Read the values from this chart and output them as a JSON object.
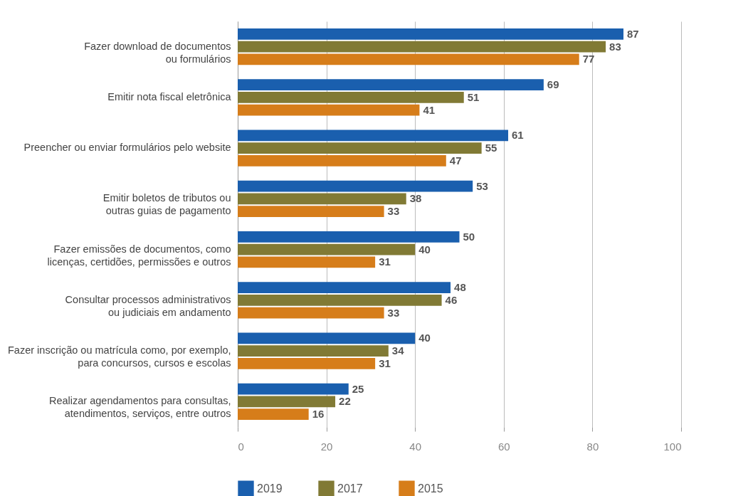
{
  "chart_data": {
    "type": "bar",
    "orientation": "horizontal",
    "categories": [
      "Fazer download de documentos\nou formulários",
      "Emitir nota fiscal eletrônica",
      "Preencher ou enviar formulários pelo website",
      "Emitir boletos de tributos ou\noutras guias de pagamento",
      "Fazer emissões de documentos, como\nlicenças, certidões, permissões e outros",
      "Consultar processos administrativos\nou judiciais em andamento",
      "Fazer inscrição ou matrícula como, por exemplo,\npara concursos, cursos e escolas",
      "Realizar agendamentos para consultas,\natendimentos, serviços, entre outros"
    ],
    "series": [
      {
        "name": "2019",
        "color": "#1a5fae",
        "values": [
          87,
          69,
          61,
          53,
          50,
          48,
          40,
          25
        ]
      },
      {
        "name": "2017",
        "color": "#817a35",
        "values": [
          83,
          51,
          55,
          38,
          40,
          46,
          34,
          22
        ]
      },
      {
        "name": "2015",
        "color": "#d67d1a",
        "values": [
          77,
          41,
          47,
          33,
          31,
          33,
          31,
          16
        ]
      }
    ],
    "xlim": [
      0,
      100
    ],
    "xticks": [
      0,
      20,
      40,
      60,
      80,
      100
    ],
    "grid": "x",
    "legend": "bottom",
    "data_labels": true
  }
}
